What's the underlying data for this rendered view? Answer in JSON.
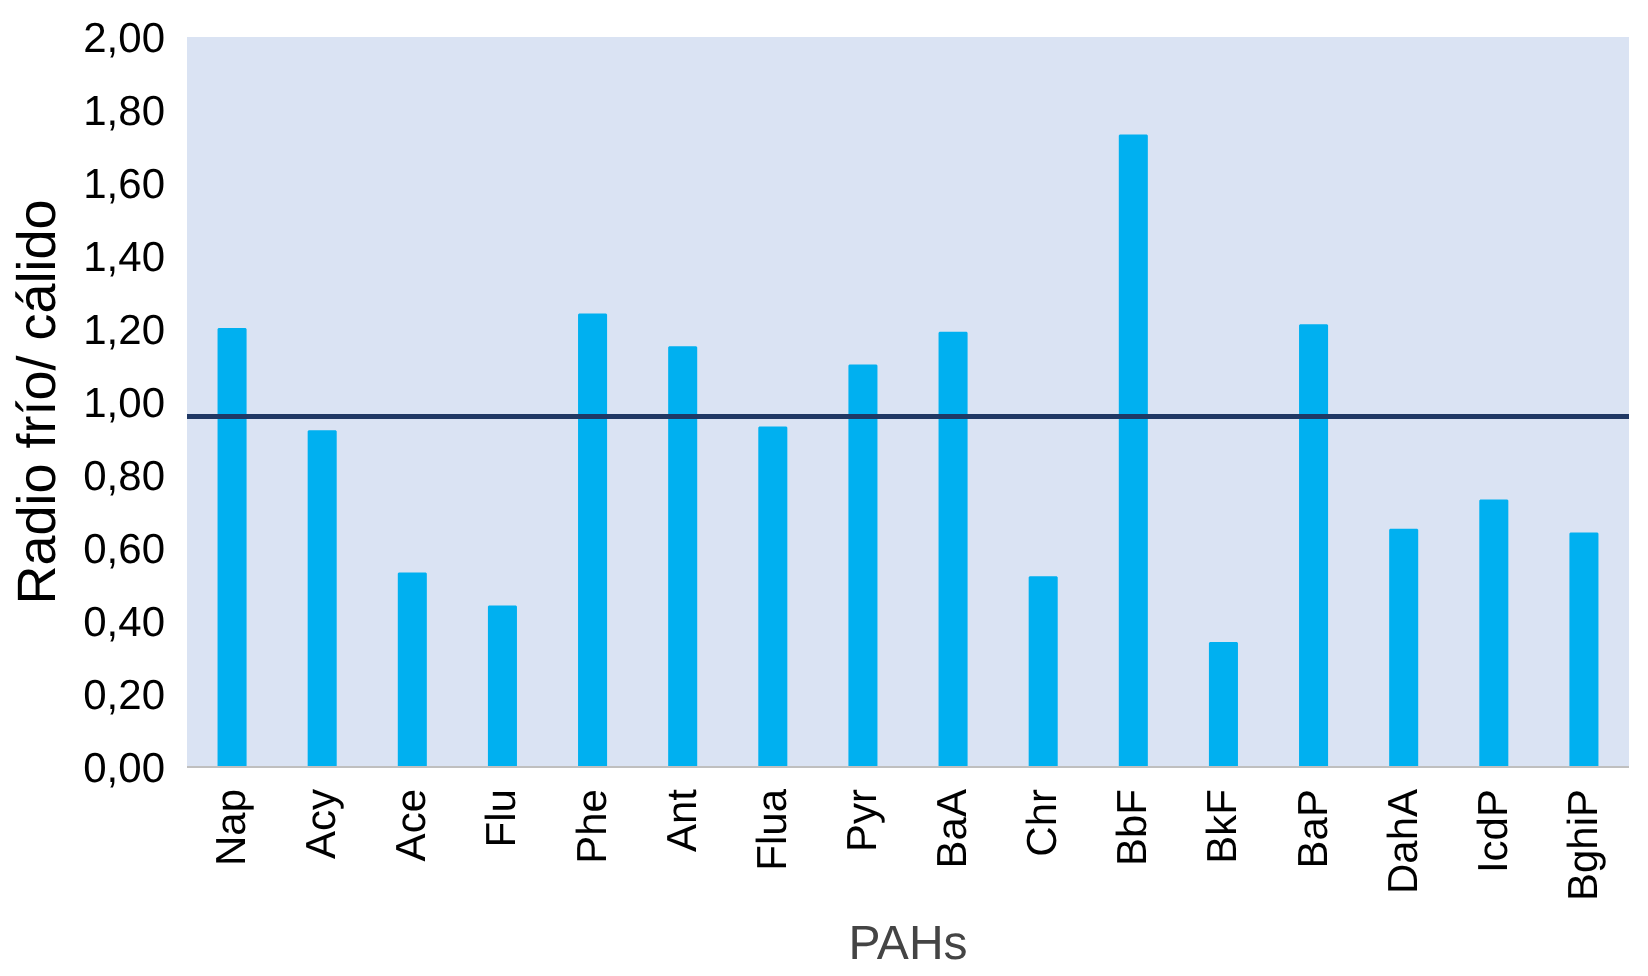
{
  "chart_data": {
    "type": "bar",
    "xlabel": "PAHs",
    "ylabel": "Radio frío/ cálido",
    "categories": [
      "Nap",
      "Acy",
      "Ace",
      "Flu",
      "Phe",
      "Ant",
      "Flua",
      "Pyr",
      "BaA",
      "Chr",
      "BbF",
      "BkF",
      "BaP",
      "DahA",
      "IcdP",
      "BghiP"
    ],
    "values": [
      1.2,
      0.92,
      0.53,
      0.44,
      1.24,
      1.15,
      0.93,
      1.1,
      1.19,
      0.52,
      1.73,
      0.34,
      1.21,
      0.65,
      0.73,
      0.64
    ],
    "color": "#00b0f0",
    "ylim": [
      0,
      2
    ],
    "yticks": [
      {
        "value": 0,
        "label": "0,00"
      },
      {
        "value": 0.2,
        "label": "0,20"
      },
      {
        "value": 0.4,
        "label": "0,40"
      },
      {
        "value": 0.6,
        "label": "0,60"
      },
      {
        "value": 0.8,
        "label": "0,80"
      },
      {
        "value": 1,
        "label": "1,00"
      },
      {
        "value": 1.2,
        "label": "1,20"
      },
      {
        "value": 1.4,
        "label": "1,40"
      },
      {
        "value": 1.6,
        "label": "1,60"
      },
      {
        "value": 1.8,
        "label": "1,80"
      },
      {
        "value": 2,
        "label": "2,00"
      }
    ],
    "ref_lines": [
      {
        "axis": "y",
        "value": 0.96,
        "color": "#1f3864"
      }
    ],
    "grid": false
  }
}
